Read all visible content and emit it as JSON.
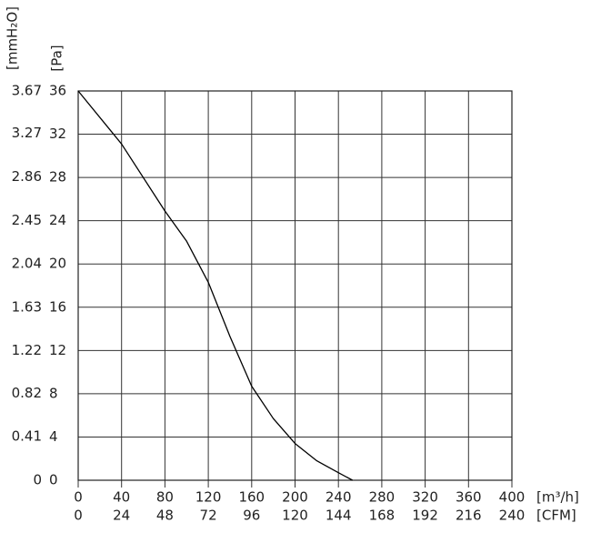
{
  "chart_data": {
    "type": "line",
    "x_label": "[m³/h]",
    "x2_label": "[CFM]",
    "y_label": "[Pa]",
    "y2_label": "[mmH₂O]",
    "xlim": [
      0,
      400
    ],
    "xticks": [
      0,
      40,
      80,
      120,
      160,
      200,
      240,
      280,
      320,
      360,
      400
    ],
    "x2lim": [
      0,
      240
    ],
    "x2ticks": [
      0,
      24,
      48,
      72,
      96,
      120,
      144,
      168,
      192,
      216,
      240
    ],
    "ylim": [
      0,
      36
    ],
    "yticks": [
      0,
      4,
      8,
      12,
      16,
      20,
      24,
      28,
      32,
      36
    ],
    "y2lim": [
      0,
      3.67
    ],
    "y2ticks": [
      0,
      0.41,
      0.82,
      1.22,
      1.63,
      2.04,
      2.45,
      2.86,
      3.27,
      3.67
    ],
    "grid": true,
    "series": [
      {
        "color": "#000000",
        "x": [
          0,
          40,
          80,
          100,
          120,
          140,
          160,
          180,
          200,
          220,
          240,
          253
        ],
        "values": [
          36,
          31.1,
          24.9,
          22.1,
          18.3,
          13.3,
          8.7,
          5.7,
          3.4,
          1.8,
          0.7,
          0
        ]
      }
    ]
  }
}
